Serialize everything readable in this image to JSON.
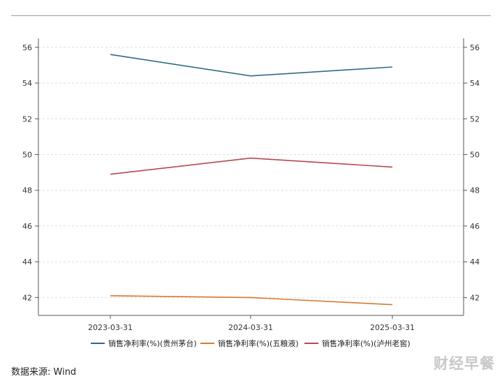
{
  "chart_data": {
    "type": "line",
    "x": [
      "2023-03-31",
      "2024-03-31",
      "2025-03-31"
    ],
    "series": [
      {
        "name": "销售净利率(%)(贵州茅台)",
        "values": [
          55.6,
          54.4,
          54.9
        ],
        "color": "#2e6b86"
      },
      {
        "name": "销售净利率(%)(五粮液)",
        "values": [
          42.1,
          42.0,
          41.6
        ],
        "color": "#d9782d"
      },
      {
        "name": "销售净利率(%)(泸州老窖)",
        "values": [
          48.9,
          49.8,
          49.3
        ],
        "color": "#b5474e"
      }
    ],
    "ylim": [
      41,
      56.5
    ],
    "yticks": [
      42,
      44,
      46,
      48,
      50,
      52,
      54,
      56
    ],
    "grid": true,
    "legend": "bottom",
    "dual_y_axis": true
  },
  "footer": {
    "source": "数据来源: Wind",
    "watermark": "财经早餐"
  }
}
